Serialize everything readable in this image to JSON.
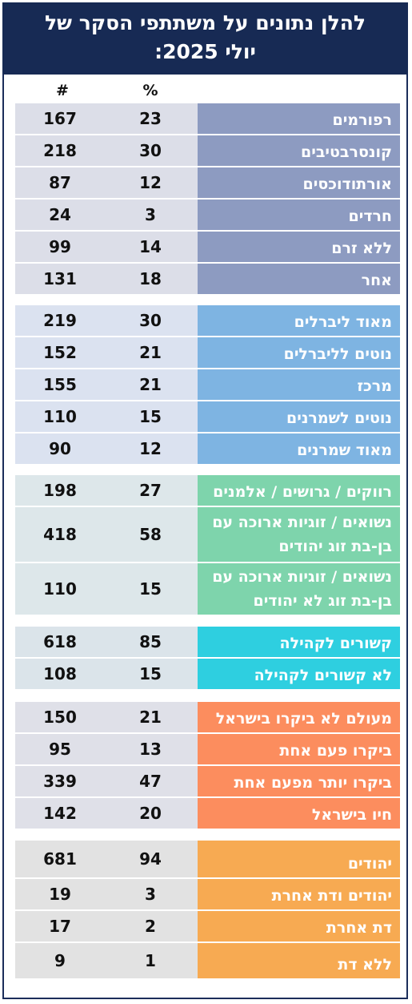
{
  "title_line1": "להלן נתונים על משתתפי הסקר של",
  "title_line2": "יולי 2025:",
  "col_count": "#",
  "col_pct": "%",
  "rows": [
    {
      "label": "רפורמים",
      "pct": "23",
      "count": "167"
    },
    {
      "label": "קונסרבטיבים",
      "pct": "30",
      "count": "218"
    },
    {
      "label": "אורתודוכסים",
      "pct": "12",
      "count": "87"
    },
    {
      "label": "חרדים",
      "pct": "3",
      "count": "24"
    },
    {
      "label": "ללא זרם",
      "pct": "14",
      "count": "99"
    },
    {
      "label": "אחר",
      "pct": "18",
      "count": "131"
    },
    {
      "label": "מאוד ליברלים",
      "pct": "30",
      "count": "219"
    },
    {
      "label": "נוטים לליברלים",
      "pct": "21",
      "count": "152"
    },
    {
      "label": "מרכז",
      "pct": "21",
      "count": "155"
    },
    {
      "label": "נוטים לשמרנים",
      "pct": "15",
      "count": "110"
    },
    {
      "label": "מאוד שמרנים",
      "pct": "12",
      "count": "90"
    },
    {
      "label": "רווקים / גרושים / אלמנים",
      "pct": "27",
      "count": "198"
    },
    {
      "label": "נשואים / זוגיות ארוכה עם בן-בת זוג יהודים",
      "pct": "58",
      "count": "418"
    },
    {
      "label": "נשואים / זוגיות ארוכה עם בן-בת זוג לא יהודים",
      "pct": "15",
      "count": "110"
    },
    {
      "label": "קשורים לקהילה",
      "pct": "85",
      "count": "618"
    },
    {
      "label": "לא קשורים לקהילה",
      "pct": "15",
      "count": "108"
    },
    {
      "label": "מעולם לא ביקרו בישראל",
      "pct": "21",
      "count": "150"
    },
    {
      "label": "ביקרו פעם אחת",
      "pct": "13",
      "count": "95"
    },
    {
      "label": "ביקרו יותר מפעם אחת",
      "pct": "47",
      "count": "339"
    },
    {
      "label": "חיו בישראל",
      "pct": "20",
      "count": "142"
    },
    {
      "label": "יהודים",
      "pct": "94",
      "count": "681"
    },
    {
      "label": "יהודים ודת אחרת",
      "pct": "3",
      "count": "19"
    },
    {
      "label": "דת אחרת",
      "pct": "2",
      "count": "17"
    },
    {
      "label": "ללא דת",
      "pct": "1",
      "count": "9"
    }
  ]
}
